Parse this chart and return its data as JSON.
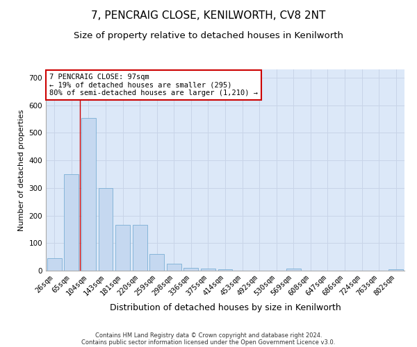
{
  "title": "7, PENCRAIG CLOSE, KENILWORTH, CV8 2NT",
  "subtitle": "Size of property relative to detached houses in Kenilworth",
  "xlabel": "Distribution of detached houses by size in Kenilworth",
  "ylabel": "Number of detached properties",
  "categories": [
    "26sqm",
    "65sqm",
    "104sqm",
    "143sqm",
    "181sqm",
    "220sqm",
    "259sqm",
    "298sqm",
    "336sqm",
    "375sqm",
    "414sqm",
    "453sqm",
    "492sqm",
    "530sqm",
    "569sqm",
    "608sqm",
    "647sqm",
    "686sqm",
    "724sqm",
    "763sqm",
    "802sqm"
  ],
  "values": [
    45,
    350,
    555,
    300,
    165,
    165,
    60,
    25,
    10,
    8,
    5,
    0,
    0,
    0,
    8,
    0,
    0,
    0,
    0,
    0,
    5
  ],
  "bar_color": "#c5d8f0",
  "bar_edge_color": "#7baed4",
  "grid_color": "#c8d4e8",
  "background_color": "#dce8f8",
  "vline_color": "#cc0000",
  "vline_pos": 1.5,
  "annotation_text": "7 PENCRAIG CLOSE: 97sqm\n← 19% of detached houses are smaller (295)\n80% of semi-detached houses are larger (1,210) →",
  "annotation_box_color": "#ffffff",
  "annotation_border_color": "#cc0000",
  "ylim": [
    0,
    730
  ],
  "yticks": [
    0,
    100,
    200,
    300,
    400,
    500,
    600,
    700
  ],
  "footer1": "Contains HM Land Registry data © Crown copyright and database right 2024.",
  "footer2": "Contains public sector information licensed under the Open Government Licence v3.0.",
  "title_fontsize": 11,
  "subtitle_fontsize": 9.5,
  "xlabel_fontsize": 9,
  "ylabel_fontsize": 8,
  "tick_fontsize": 7.5
}
